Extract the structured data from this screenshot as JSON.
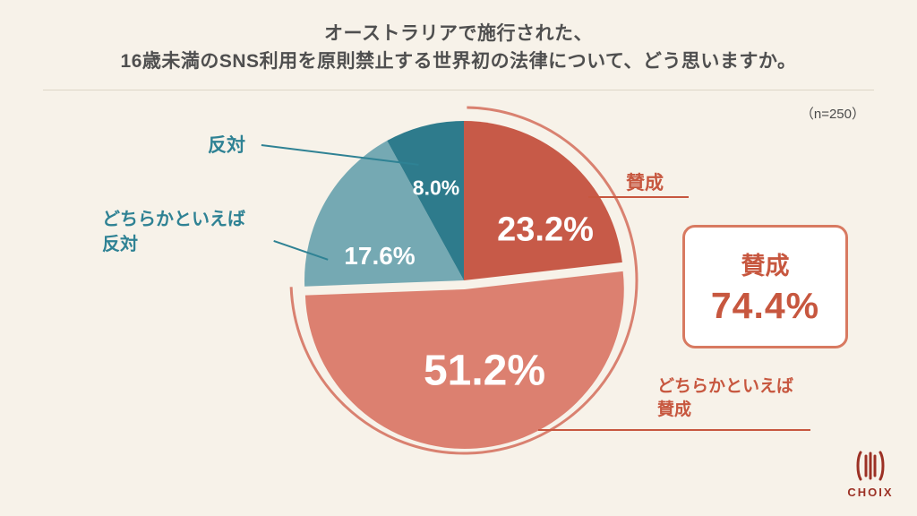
{
  "header": {
    "title_line1": "オーストラリアで施行された、",
    "title_line2": "16歳未満のSNS利用を原則禁止する世界初の法律について、どう思いますか。",
    "sample_size": "（n=250）"
  },
  "chart_data": {
    "type": "pie",
    "title": "オーストラリアで施行された、16歳未満のSNS利用を原則禁止する世界初の法律について、どう思いますか。",
    "sample_size_label": "（n=250）",
    "start_angle_deg": 0,
    "direction": "clockwise",
    "slices": [
      {
        "label": "賛成",
        "value": 23.2,
        "pct_text": "23.2%",
        "color": "#C75A48"
      },
      {
        "label": "どちらかといえば賛成",
        "value": 51.2,
        "pct_text": "51.2%",
        "color": "#DC8070",
        "exploded": true
      },
      {
        "label": "どちらかといえば反対",
        "value": 17.6,
        "pct_text": "17.6%",
        "color": "#75A9B3"
      },
      {
        "label": "反対",
        "value": 8.0,
        "pct_text": "8.0%",
        "color": "#2E7B8C"
      }
    ],
    "highlight_arc": {
      "label": "賛成（計）",
      "value": 74.4,
      "color": "#D98170"
    }
  },
  "callouts": {
    "agree": {
      "label": "賛成"
    },
    "somewhat_agree": {
      "line1": "どちらかといえば",
      "line2": "賛成"
    },
    "somewhat_oppose": {
      "line1": "どちらかといえば",
      "line2": "反対"
    },
    "oppose": {
      "label": "反対"
    }
  },
  "summary_box": {
    "label": "賛成",
    "value_text": "74.4%"
  },
  "logo": {
    "text": "CHOIX"
  },
  "colors": {
    "background": "#F7F2E9",
    "agree_strong": "#C75A48",
    "agree_weak": "#DC8070",
    "oppose_weak": "#75A9B3",
    "oppose_strong": "#2E7B8C",
    "coral_text": "#C7573F",
    "teal_text": "#2F8294"
  }
}
